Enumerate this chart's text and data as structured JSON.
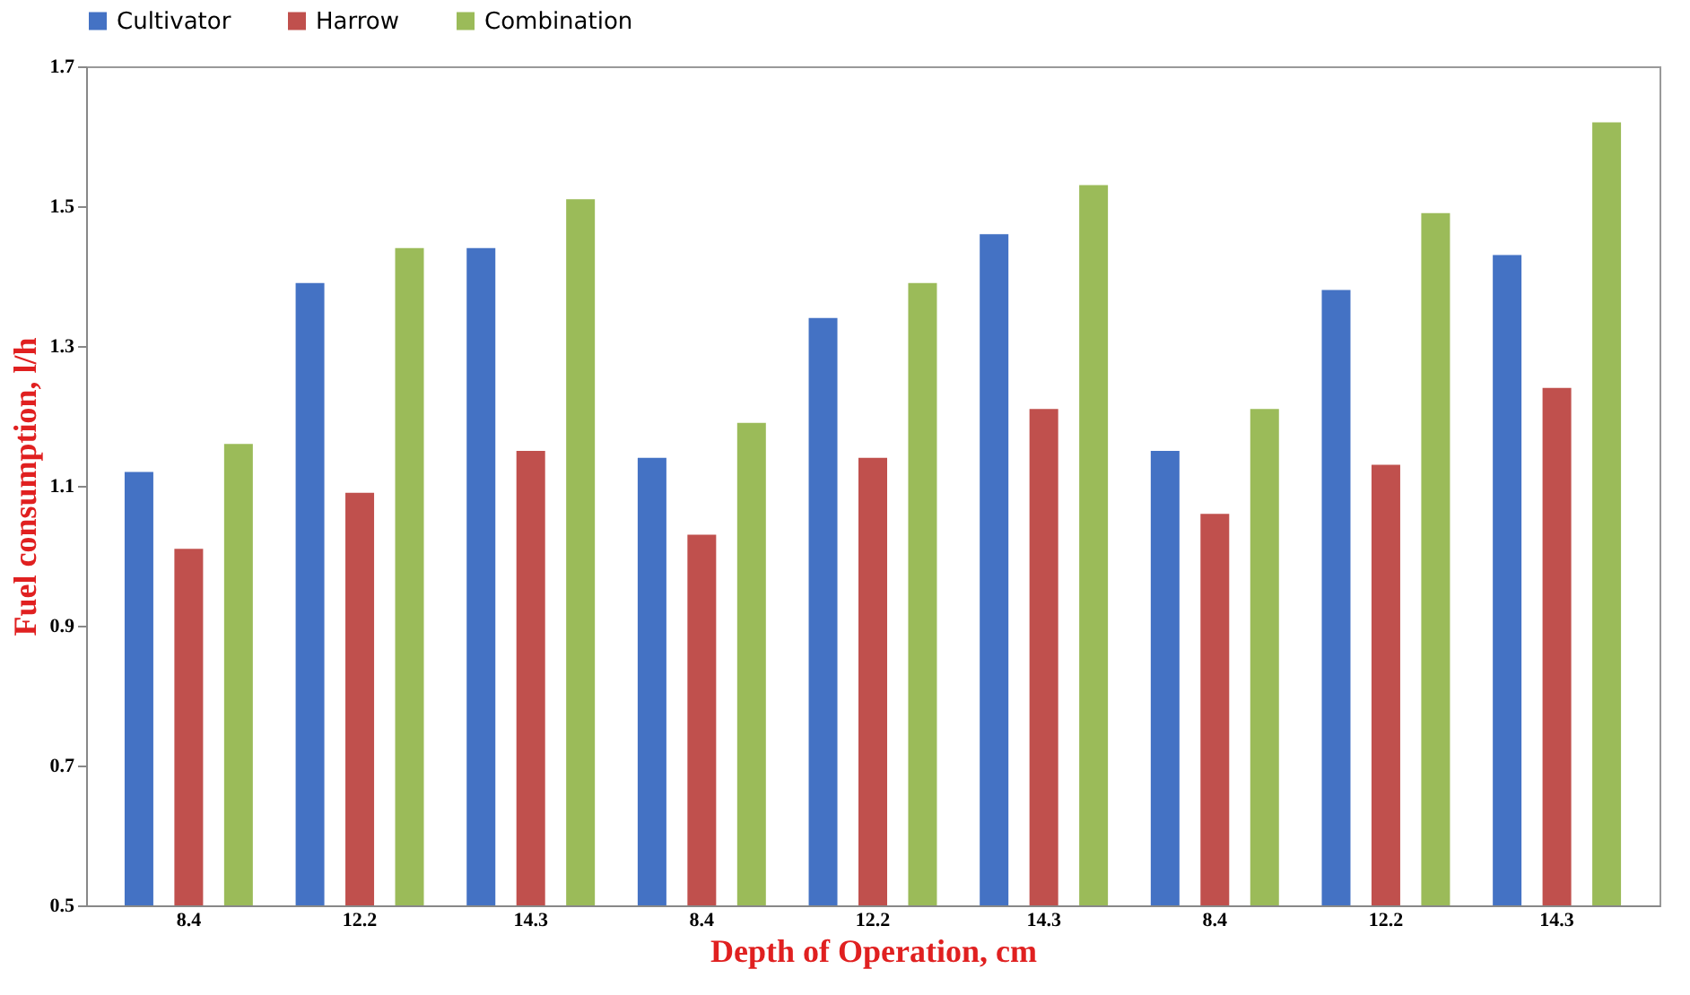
{
  "chart_data": {
    "type": "bar",
    "xlabel": "Depth of Operation, cm",
    "ylabel": "Fuel consumption, l/h",
    "categories": [
      "8.4",
      "12.2",
      "14.3",
      "8.4",
      "12.2",
      "14.3",
      "8.4",
      "12.2",
      "14.3"
    ],
    "series": [
      {
        "name": "Cultivator",
        "color": "#4472c4",
        "values": [
          1.12,
          1.39,
          1.44,
          1.14,
          1.34,
          1.46,
          1.15,
          1.38,
          1.43
        ]
      },
      {
        "name": "Harrow",
        "color": "#c0504d",
        "values": [
          1.01,
          1.09,
          1.15,
          1.03,
          1.14,
          1.21,
          1.06,
          1.13,
          1.24
        ]
      },
      {
        "name": "Combination",
        "color": "#9bbb59",
        "values": [
          1.16,
          1.44,
          1.51,
          1.19,
          1.39,
          1.53,
          1.21,
          1.49,
          1.62
        ]
      }
    ],
    "ylim": [
      0.5,
      1.7
    ],
    "yticks": [
      0.5,
      0.7,
      0.9,
      1.1,
      1.3,
      1.5,
      1.7
    ],
    "grid": false,
    "legend": "top"
  }
}
